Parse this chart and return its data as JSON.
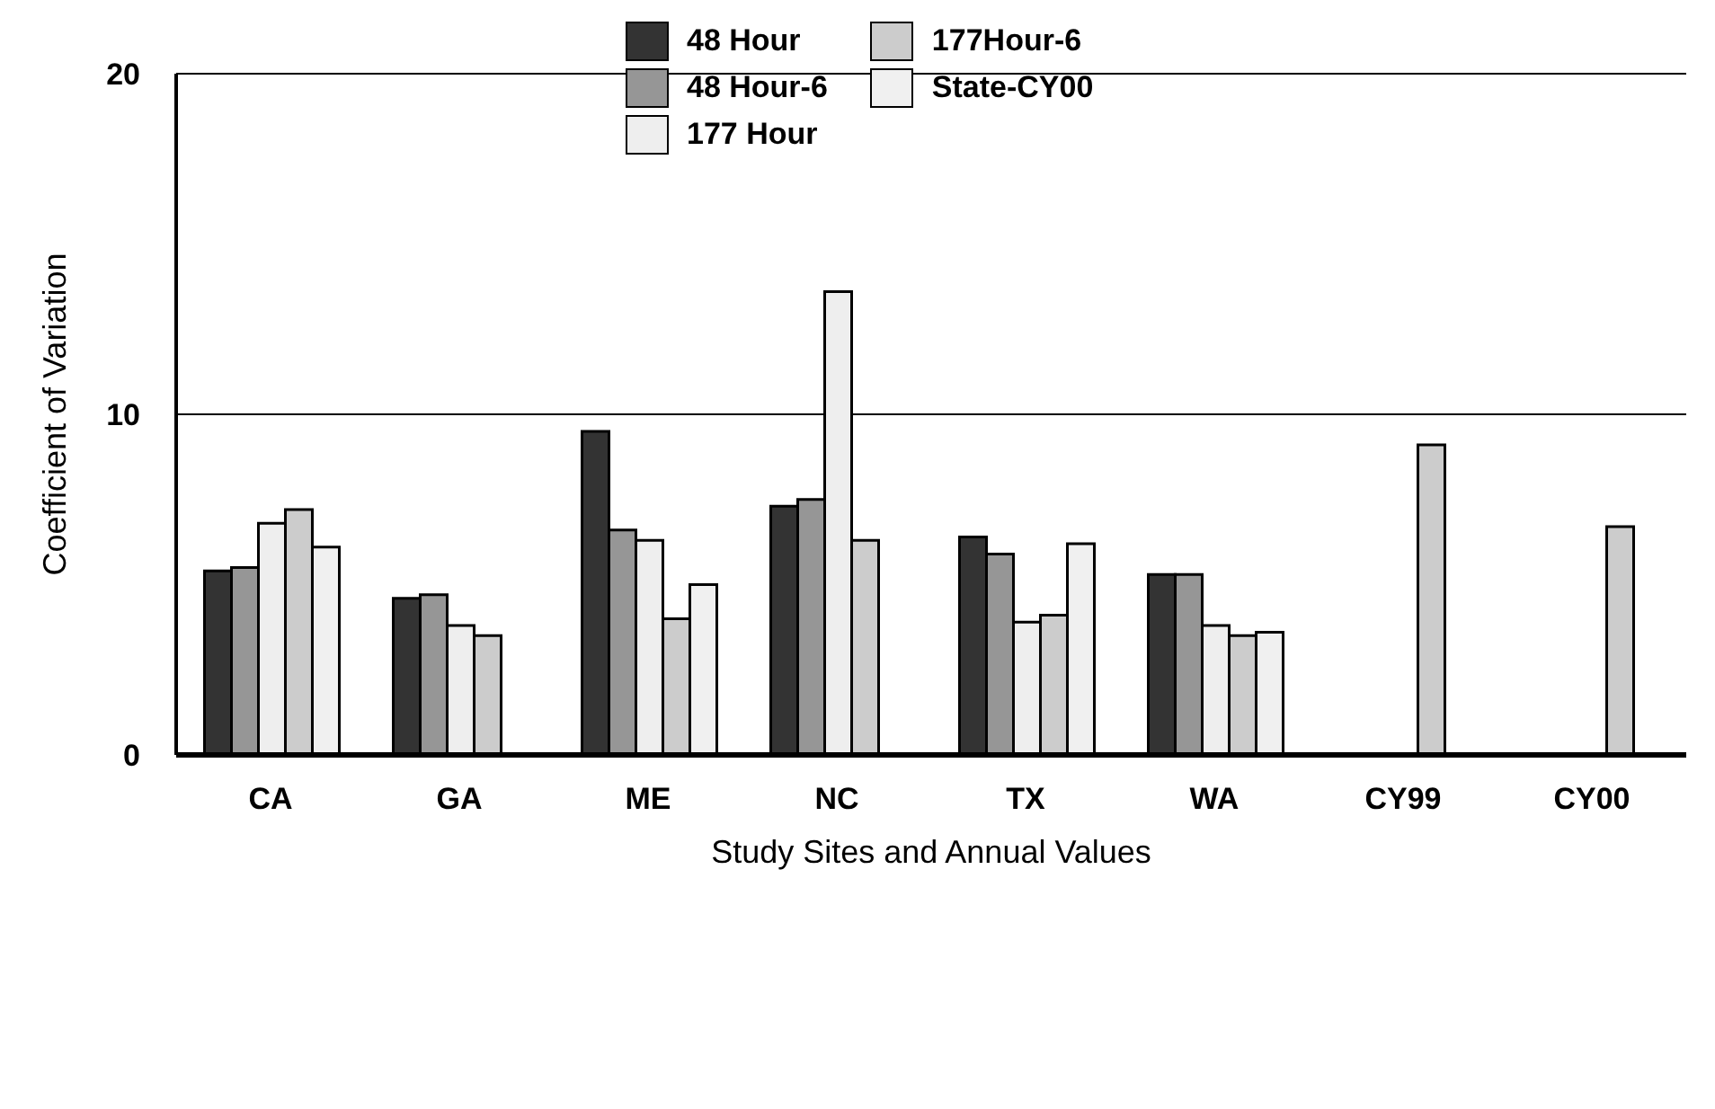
{
  "chart_data": {
    "type": "bar",
    "xlabel": "Study Sites and Annual Values",
    "ylabel": "Coefficient of Variation",
    "categories": [
      "CA",
      "GA",
      "ME",
      "NC",
      "TX",
      "WA",
      "CY99",
      "CY00"
    ],
    "series": [
      {
        "name": "48 Hour",
        "color": "#333333",
        "values": [
          5.4,
          4.6,
          9.5,
          7.3,
          6.4,
          5.3,
          null,
          null
        ]
      },
      {
        "name": "48 Hour-6",
        "color": "#969696",
        "values": [
          5.5,
          4.7,
          6.6,
          7.5,
          5.9,
          5.3,
          null,
          null
        ]
      },
      {
        "name": "177 Hour",
        "color": "#eeeeee",
        "values": [
          6.8,
          3.8,
          6.3,
          13.6,
          3.9,
          3.8,
          null,
          null
        ]
      },
      {
        "name": "177Hour-6",
        "color": "#cccccc",
        "values": [
          7.2,
          3.5,
          4.0,
          6.3,
          4.1,
          3.5,
          9.1,
          6.7
        ]
      },
      {
        "name": "State-CY00",
        "color": "#f0f0f0",
        "values": [
          6.1,
          null,
          5.0,
          null,
          6.2,
          3.6,
          null,
          null
        ]
      }
    ],
    "ylim": [
      0,
      20
    ],
    "yticks": [
      0,
      10,
      20
    ],
    "grid": "y",
    "legend": "top"
  }
}
